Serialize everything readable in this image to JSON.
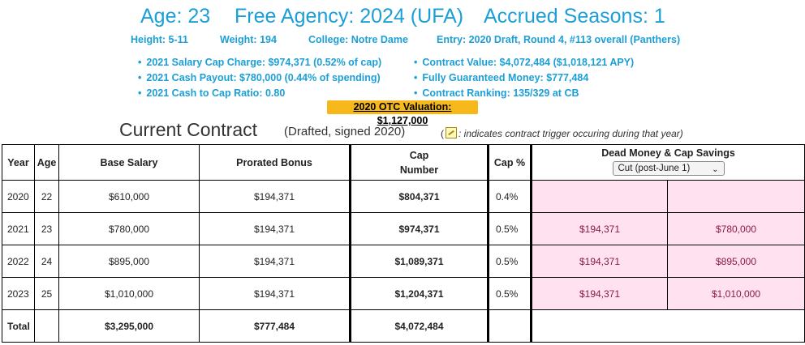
{
  "header": {
    "age": "Age: 23",
    "free_agency": "Free Agency: 2024 (UFA)",
    "accrued": "Accrued Seasons: 1"
  },
  "bio": {
    "height": "Height: 5-11",
    "weight": "Weight: 194",
    "college": "College: Notre Dame",
    "entry": "Entry: 2020 Draft, Round 4, #113 overall (Panthers)"
  },
  "left_bullets": [
    "2021 Salary Cap Charge: $974,371 (0.52% of cap)",
    "2021 Cash Payout: $780,000 (0.44% of spending)",
    "2021 Cash to Cap Ratio: 0.80"
  ],
  "right_bullets": [
    "Contract Value: $4,072,484 ($1,018,121 APY)",
    "Fully Guaranteed Money: $777,484",
    "Contract Ranking: 135/329 at CB"
  ],
  "otc_valuation": "2020 OTC Valuation: $1,127,000",
  "contract": {
    "title": "Current Contract",
    "subtitle": "(Drafted, signed 2020)",
    "note_open": "(",
    "note_text": ": indicates contract trigger occuring during that year)"
  },
  "table": {
    "headers": {
      "year": "Year",
      "age": "Age",
      "base": "Base Salary",
      "bonus": "Prorated Bonus",
      "cap_line1": "Cap",
      "cap_line2": "Number",
      "cap_pct": "Cap %",
      "dead": "Dead Money & Cap Savings"
    },
    "dropdown_selected": "Cut (post-June 1)",
    "rows": [
      {
        "year": "2020",
        "age": "22",
        "base": "$610,000",
        "bonus": "$194,371",
        "cap": "$804,371",
        "pct": "0.4%",
        "dead": "",
        "savings": ""
      },
      {
        "year": "2021",
        "age": "23",
        "base": "$780,000",
        "bonus": "$194,371",
        "cap": "$974,371",
        "pct": "0.5%",
        "dead": "$194,371",
        "savings": "$780,000"
      },
      {
        "year": "2022",
        "age": "24",
        "base": "$895,000",
        "bonus": "$194,371",
        "cap": "$1,089,371",
        "pct": "0.5%",
        "dead": "$194,371",
        "savings": "$895,000"
      },
      {
        "year": "2023",
        "age": "25",
        "base": "$1,010,000",
        "bonus": "$194,371",
        "cap": "$1,204,371",
        "pct": "0.5%",
        "dead": "$194,371",
        "savings": "$1,010,000"
      }
    ],
    "total": {
      "label": "Total",
      "base": "$3,295,000",
      "bonus": "$777,484",
      "cap": "$4,072,484"
    }
  }
}
